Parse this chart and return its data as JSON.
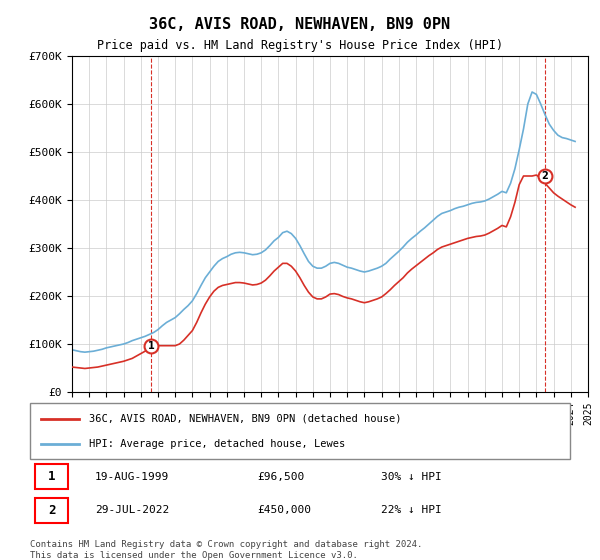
{
  "title": "36C, AVIS ROAD, NEWHAVEN, BN9 0PN",
  "subtitle": "Price paid vs. HM Land Registry's House Price Index (HPI)",
  "ylim": [
    0,
    700000
  ],
  "yticks": [
    0,
    100000,
    200000,
    300000,
    400000,
    500000,
    600000,
    700000
  ],
  "ytick_labels": [
    "£0",
    "£100K",
    "£200K",
    "£300K",
    "£400K",
    "£500K",
    "£600K",
    "£700K"
  ],
  "hpi_color": "#6baed6",
  "price_color": "#d73027",
  "dashed_color": "#d73027",
  "background_color": "#ffffff",
  "grid_color": "#cccccc",
  "annotation1": {
    "label": "1",
    "date": "19-AUG-1999",
    "price": 96500,
    "text": "30% ↓ HPI"
  },
  "annotation2": {
    "label": "2",
    "date": "29-JUL-2022",
    "price": 450000,
    "text": "22% ↓ HPI"
  },
  "legend_line1": "36C, AVIS ROAD, NEWHAVEN, BN9 0PN (detached house)",
  "legend_line2": "HPI: Average price, detached house, Lewes",
  "footer": "Contains HM Land Registry data © Crown copyright and database right 2024.\nThis data is licensed under the Open Government Licence v3.0.",
  "hpi_x": [
    1995.0,
    1995.25,
    1995.5,
    1995.75,
    1996.0,
    1996.25,
    1996.5,
    1996.75,
    1997.0,
    1997.25,
    1997.5,
    1997.75,
    1998.0,
    1998.25,
    1998.5,
    1998.75,
    1999.0,
    1999.25,
    1999.5,
    1999.75,
    2000.0,
    2000.25,
    2000.5,
    2000.75,
    2001.0,
    2001.25,
    2001.5,
    2001.75,
    2002.0,
    2002.25,
    2002.5,
    2002.75,
    2003.0,
    2003.25,
    2003.5,
    2003.75,
    2004.0,
    2004.25,
    2004.5,
    2004.75,
    2005.0,
    2005.25,
    2005.5,
    2005.75,
    2006.0,
    2006.25,
    2006.5,
    2006.75,
    2007.0,
    2007.25,
    2007.5,
    2007.75,
    2008.0,
    2008.25,
    2008.5,
    2008.75,
    2009.0,
    2009.25,
    2009.5,
    2009.75,
    2010.0,
    2010.25,
    2010.5,
    2010.75,
    2011.0,
    2011.25,
    2011.5,
    2011.75,
    2012.0,
    2012.25,
    2012.5,
    2012.75,
    2013.0,
    2013.25,
    2013.5,
    2013.75,
    2014.0,
    2014.25,
    2014.5,
    2014.75,
    2015.0,
    2015.25,
    2015.5,
    2015.75,
    2016.0,
    2016.25,
    2016.5,
    2016.75,
    2017.0,
    2017.25,
    2017.5,
    2017.75,
    2018.0,
    2018.25,
    2018.5,
    2018.75,
    2019.0,
    2019.25,
    2019.5,
    2019.75,
    2020.0,
    2020.25,
    2020.5,
    2020.75,
    2021.0,
    2021.25,
    2021.5,
    2021.75,
    2022.0,
    2022.25,
    2022.5,
    2022.75,
    2023.0,
    2023.25,
    2023.5,
    2023.75,
    2024.0,
    2024.25
  ],
  "hpi_y": [
    88000,
    86000,
    84000,
    83000,
    84000,
    85000,
    87000,
    89000,
    92000,
    94000,
    96000,
    98000,
    100000,
    103000,
    107000,
    110000,
    113000,
    116000,
    120000,
    124000,
    130000,
    138000,
    145000,
    150000,
    155000,
    163000,
    172000,
    180000,
    190000,
    205000,
    222000,
    238000,
    250000,
    262000,
    272000,
    278000,
    282000,
    287000,
    290000,
    291000,
    290000,
    288000,
    286000,
    287000,
    290000,
    296000,
    305000,
    315000,
    322000,
    332000,
    335000,
    330000,
    320000,
    305000,
    288000,
    272000,
    262000,
    258000,
    258000,
    262000,
    268000,
    270000,
    268000,
    264000,
    260000,
    258000,
    255000,
    252000,
    250000,
    252000,
    255000,
    258000,
    262000,
    268000,
    277000,
    285000,
    293000,
    302000,
    312000,
    320000,
    327000,
    335000,
    342000,
    350000,
    358000,
    366000,
    372000,
    375000,
    378000,
    382000,
    385000,
    387000,
    390000,
    393000,
    395000,
    396000,
    398000,
    402000,
    407000,
    412000,
    418000,
    415000,
    435000,
    465000,
    505000,
    548000,
    600000,
    625000,
    620000,
    600000,
    578000,
    558000,
    545000,
    535000,
    530000,
    528000,
    525000,
    522000
  ],
  "price_x": [
    1995.0,
    1995.25,
    1995.5,
    1995.75,
    1996.0,
    1996.25,
    1996.5,
    1996.75,
    1997.0,
    1997.25,
    1997.5,
    1997.75,
    1998.0,
    1998.25,
    1998.5,
    1998.75,
    1999.0,
    1999.25,
    1999.5,
    1999.75,
    2000.0,
    2000.25,
    2000.5,
    2000.75,
    2001.0,
    2001.25,
    2001.5,
    2001.75,
    2002.0,
    2002.25,
    2002.5,
    2002.75,
    2003.0,
    2003.25,
    2003.5,
    2003.75,
    2004.0,
    2004.25,
    2004.5,
    2004.75,
    2005.0,
    2005.25,
    2005.5,
    2005.75,
    2006.0,
    2006.25,
    2006.5,
    2006.75,
    2007.0,
    2007.25,
    2007.5,
    2007.75,
    2008.0,
    2008.25,
    2008.5,
    2008.75,
    2009.0,
    2009.25,
    2009.5,
    2009.75,
    2010.0,
    2010.25,
    2010.5,
    2010.75,
    2011.0,
    2011.25,
    2011.5,
    2011.75,
    2012.0,
    2012.25,
    2012.5,
    2012.75,
    2013.0,
    2013.25,
    2013.5,
    2013.75,
    2014.0,
    2014.25,
    2014.5,
    2014.75,
    2015.0,
    2015.25,
    2015.5,
    2015.75,
    2016.0,
    2016.25,
    2016.5,
    2016.75,
    2017.0,
    2017.25,
    2017.5,
    2017.75,
    2018.0,
    2018.25,
    2018.5,
    2018.75,
    2019.0,
    2019.25,
    2019.5,
    2019.75,
    2020.0,
    2020.25,
    2020.5,
    2020.75,
    2021.0,
    2021.25,
    2021.5,
    2021.75,
    2022.0,
    2022.25,
    2022.5,
    2022.75,
    2023.0,
    2023.25,
    2023.5,
    2023.75,
    2024.0,
    2024.25
  ],
  "price_y": [
    52000,
    51000,
    50000,
    49000,
    50000,
    51000,
    52000,
    54000,
    56000,
    58000,
    60000,
    62000,
    64000,
    67000,
    70000,
    75000,
    80000,
    85000,
    90000,
    96500,
    96500,
    96500,
    96500,
    96500,
    96500,
    100000,
    108000,
    118000,
    128000,
    145000,
    165000,
    183000,
    198000,
    210000,
    218000,
    222000,
    224000,
    226000,
    228000,
    228000,
    227000,
    225000,
    223000,
    224000,
    227000,
    233000,
    242000,
    252000,
    260000,
    268000,
    268000,
    262000,
    252000,
    238000,
    222000,
    208000,
    198000,
    194000,
    194000,
    198000,
    204000,
    205000,
    203000,
    199000,
    196000,
    194000,
    191000,
    188000,
    186000,
    188000,
    191000,
    194000,
    198000,
    205000,
    213000,
    222000,
    230000,
    238000,
    248000,
    256000,
    263000,
    270000,
    277000,
    284000,
    290000,
    297000,
    302000,
    305000,
    308000,
    311000,
    314000,
    317000,
    320000,
    322000,
    324000,
    325000,
    327000,
    331000,
    336000,
    341000,
    347000,
    344000,
    365000,
    395000,
    432000,
    450000,
    450000,
    450000,
    452000,
    445000,
    435000,
    425000,
    415000,
    408000,
    402000,
    396000,
    390000,
    385000
  ],
  "ann1_x": 1999.62,
  "ann1_y": 96500,
  "ann2_x": 2022.5,
  "ann2_y": 450000,
  "xmin": 1995.0,
  "xmax": 2025.0
}
